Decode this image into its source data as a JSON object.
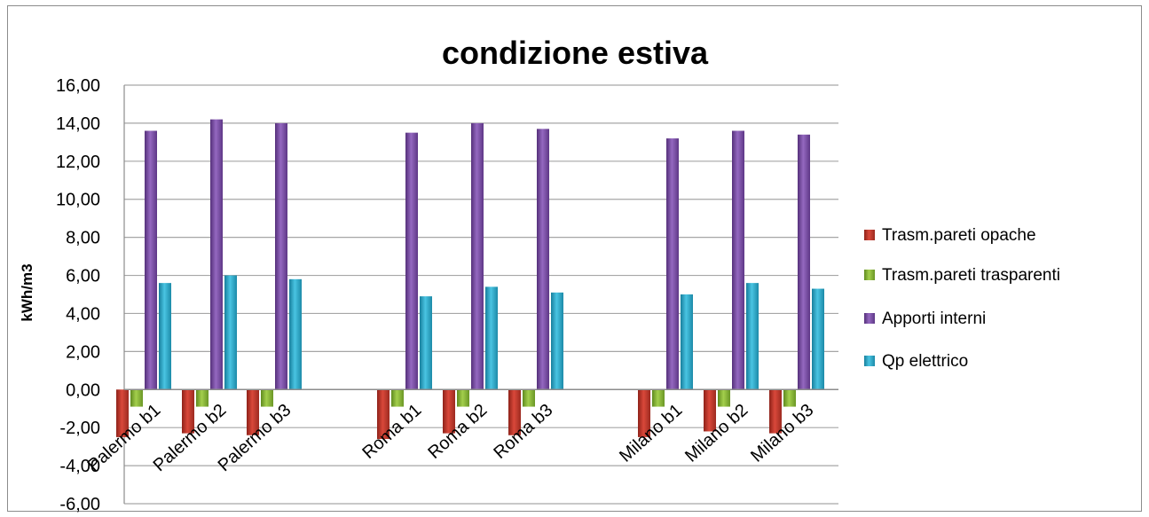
{
  "chart_data": {
    "type": "bar",
    "title": "condizione estiva",
    "xlabel": "",
    "ylabel": "kWh/m3",
    "ylim": [
      -6,
      16
    ],
    "y_ticks": [
      "16,00",
      "14,00",
      "12,00",
      "10,00",
      "8,00",
      "6,00",
      "4,00",
      "2,00",
      "0,00",
      "-2,00",
      "-4,00",
      "-6,00"
    ],
    "y_tick_values": [
      16,
      14,
      12,
      10,
      8,
      6,
      4,
      2,
      0,
      -2,
      -4,
      -6
    ],
    "grid": true,
    "legend_position": "right",
    "groups": [
      [
        "Palermo b1",
        "Palermo b2",
        "Palermo b3"
      ],
      [
        "Roma b1",
        "Roma b2",
        "Roma b3"
      ],
      [
        "Milano b1",
        "Milano b2",
        "Milano b3"
      ]
    ],
    "categories": [
      "Palermo b1",
      "Palermo b2",
      "Palermo b3",
      "Roma b1",
      "Roma b2",
      "Roma b3",
      "Milano b1",
      "Milano b2",
      "Milano b3"
    ],
    "series": [
      {
        "name": "Trasm.pareti opache",
        "color": "#c0392b",
        "values": [
          -2.5,
          -2.3,
          -2.4,
          -2.6,
          -2.3,
          -2.4,
          -2.5,
          -2.2,
          -2.3
        ]
      },
      {
        "name": "Trasm.pareti trasparenti",
        "color": "#8db83a",
        "values": [
          -0.9,
          -0.9,
          -0.9,
          -0.9,
          -0.9,
          -0.9,
          -0.9,
          -0.9,
          -0.9
        ]
      },
      {
        "name": "Apporti interni",
        "color": "#7d4fa6",
        "values": [
          13.6,
          14.2,
          14.0,
          13.5,
          14.0,
          13.7,
          13.2,
          13.6,
          13.4
        ]
      },
      {
        "name": "Qp elettrico",
        "color": "#2ba8c8",
        "values": [
          5.6,
          6.0,
          5.8,
          4.9,
          5.4,
          5.1,
          5.0,
          5.6,
          5.3
        ]
      }
    ]
  }
}
